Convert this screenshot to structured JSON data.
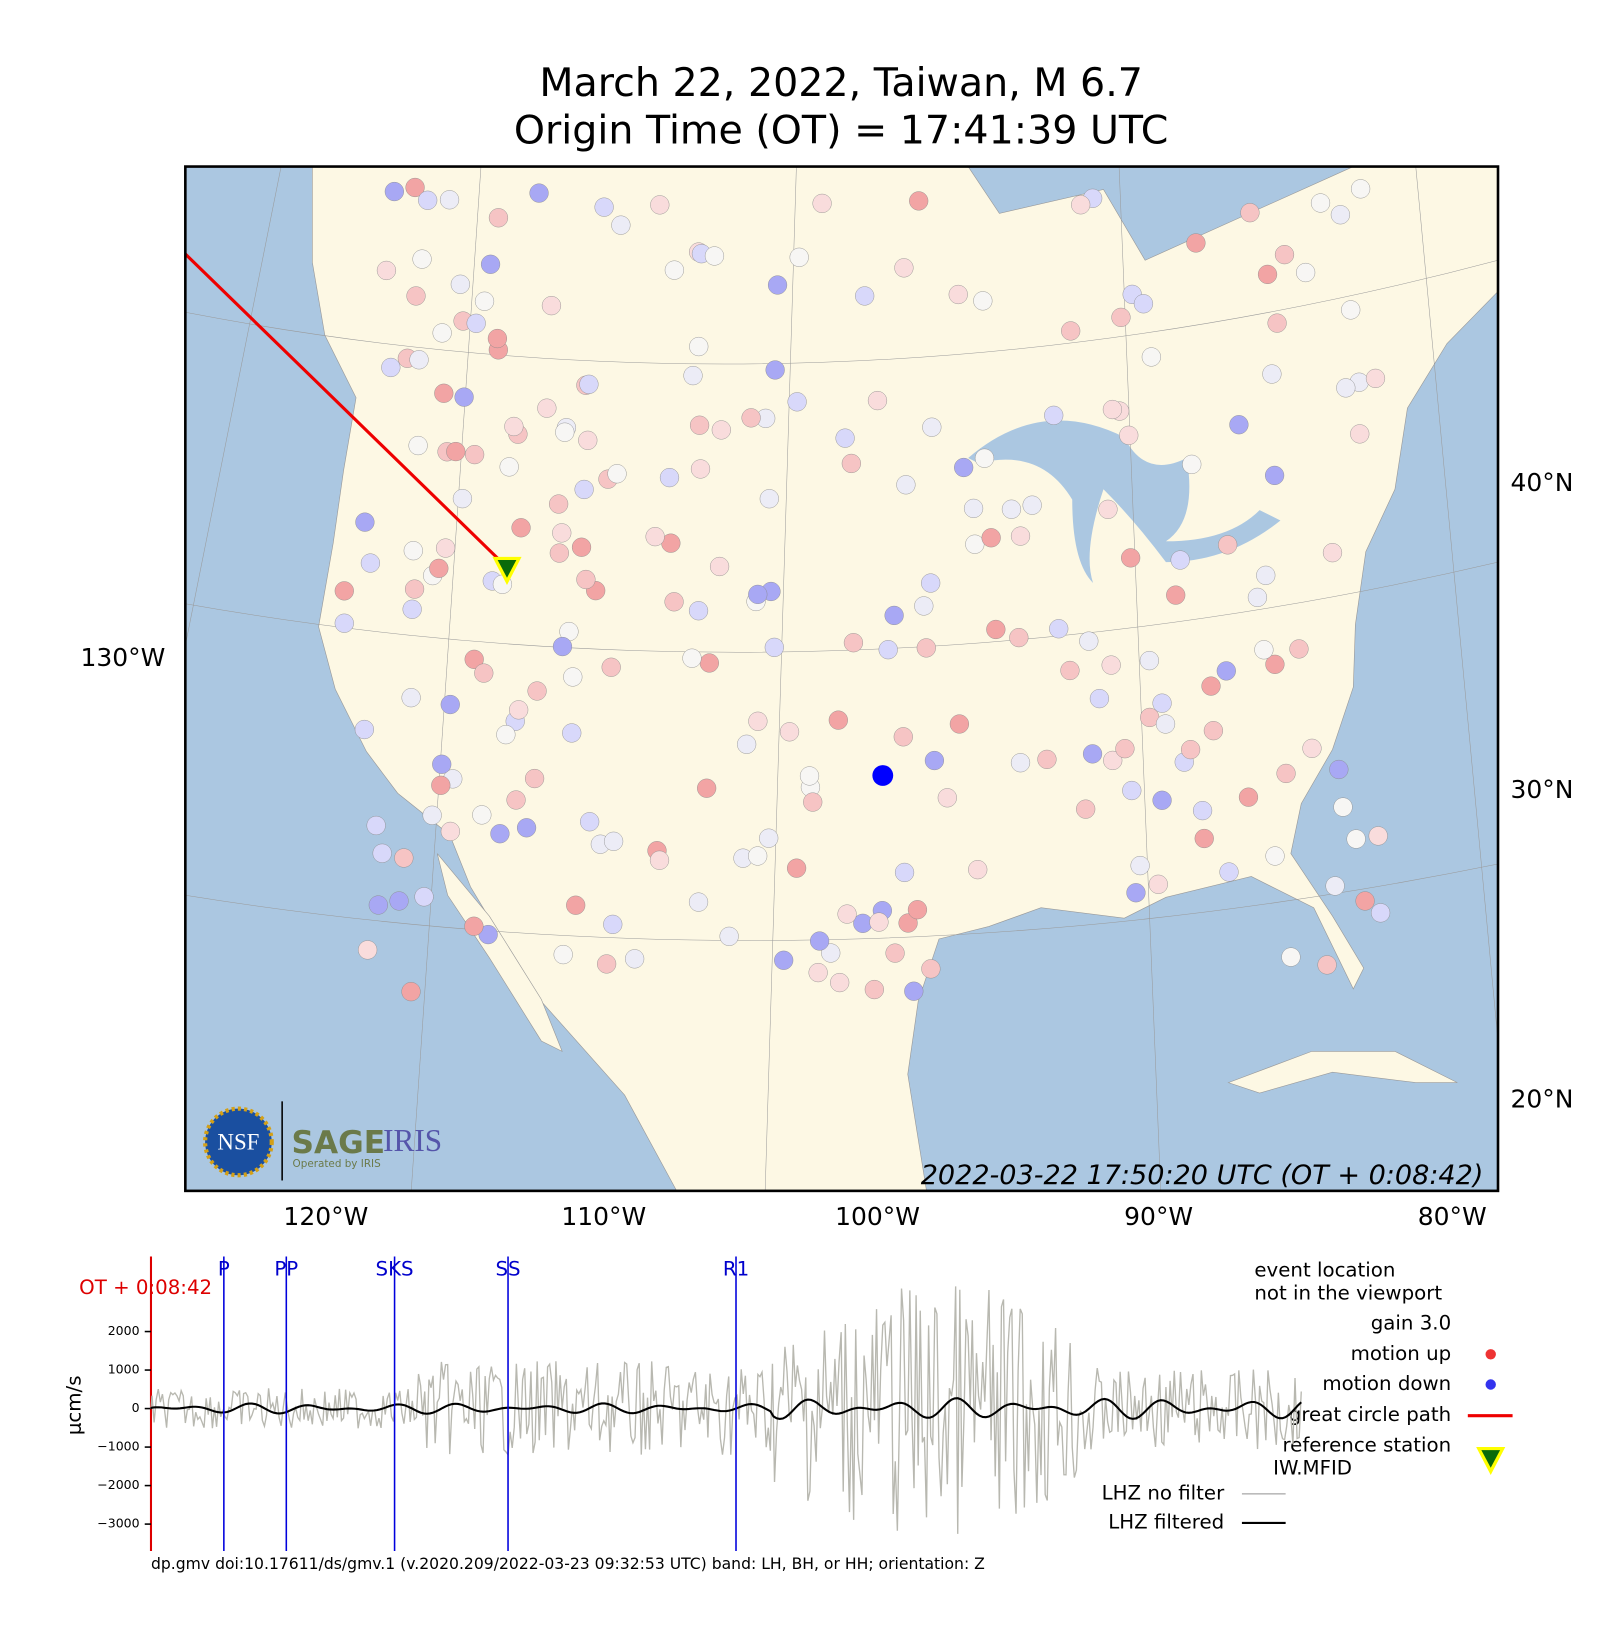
{
  "title": [
    "March 22, 2022, Taiwan, M 6.7",
    "Origin Time (OT) = 17:41:39 UTC"
  ],
  "map": {
    "lon_labels": [
      "130°W",
      "120°W",
      "110°W",
      "100°W",
      "90°W",
      "80°W"
    ],
    "lat_labels": [
      "40°N",
      "30°N",
      "20°N"
    ],
    "timestamp": "2022-03-22 17:50:20 UTC (OT + 0:08:42)",
    "logo": {
      "nsf": "NSF",
      "sage": "SAGE",
      "iris": "IRIS",
      "operated": "Operated by IRIS"
    }
  },
  "seismogram": {
    "time_label": "OT + 0:08:42",
    "phases": [
      "P",
      "PP",
      "SKS",
      "SS",
      "R1"
    ],
    "ylabel": "μcm/s",
    "ylim": [
      -3700,
      3950
    ],
    "yticks": [
      2000,
      1000,
      0,
      {
        "value": -1000,
        "label": "−1000"
      },
      {
        "value": -2000,
        "label": "−2000"
      },
      {
        "value": -3000,
        "label": "−3000"
      }
    ],
    "legend": {
      "event": [
        "event location",
        "not in the viewport"
      ],
      "gain": "gain  3.0",
      "up": "motion up",
      "down": "motion down",
      "path": "great circle path",
      "station": [
        "reference station",
        "IW.MFID"
      ],
      "raw": "LHZ no filter",
      "filtered": "LHZ filtered"
    },
    "footer": "dp.gmv doi:10.17611/ds/gmv.1 (v.2020.209/2022-03-23 09:32:53 UTC) band: LH, BH, or HH; orientation: Z"
  }
}
